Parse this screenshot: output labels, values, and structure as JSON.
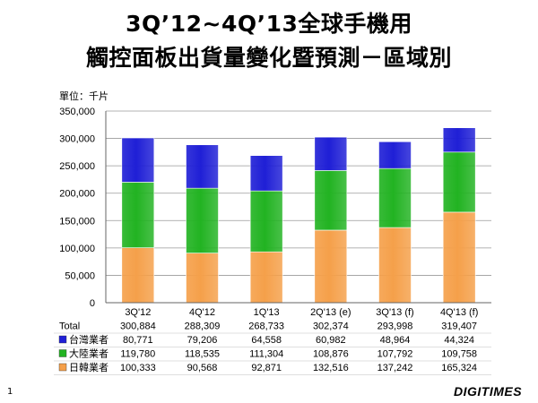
{
  "title_line1": "3Q’12~4Q’13全球手機用",
  "title_line2": "觸控面板出貨量變化暨預測－區域別",
  "unit_label": "單位：千片",
  "page_number": "1",
  "logo_text": "DIGITIMES",
  "colors": {
    "taiwan": "#1f1fd6",
    "china": "#22b322",
    "japan_korea": "#f5a04a"
  },
  "chart_data": {
    "type": "bar",
    "stacked": true,
    "title": "3Q’12~4Q’13全球手機用 觸控面板出貨量變化暨預測－區域別",
    "ylabel": "單位：千片",
    "ylim": [
      0,
      350000
    ],
    "yticks": [
      "0",
      "50,000",
      "100,000",
      "150,000",
      "200,000",
      "250,000",
      "300,000",
      "350,000"
    ],
    "grid": true,
    "categories": [
      "3Q'12",
      "4Q'12",
      "1Q'13",
      "2Q'13 (e)",
      "3Q'13 (f)",
      "4Q'13 (f)"
    ],
    "total_label": "Total",
    "totals": [
      "300,884",
      "288,309",
      "268,733",
      "302,374",
      "293,998",
      "319,407"
    ],
    "series": [
      {
        "name": "日韓業者",
        "color": "#f5a04a",
        "values": [
          100333,
          90568,
          92871,
          132516,
          137242,
          165324
        ],
        "labels": [
          "100,333",
          "90,568",
          "92,871",
          "132,516",
          "137,242",
          "165,324"
        ]
      },
      {
        "name": "大陸業者",
        "color": "#22b322",
        "values": [
          119780,
          118535,
          111304,
          108876,
          107792,
          109758
        ],
        "labels": [
          "119,780",
          "118,535",
          "111,304",
          "108,876",
          "107,792",
          "109,758"
        ]
      },
      {
        "name": "台灣業者",
        "color": "#1f1fd6",
        "values": [
          80771,
          79206,
          64558,
          60982,
          48964,
          44324
        ],
        "labels": [
          "80,771",
          "79,206",
          "64,558",
          "60,982",
          "48,964",
          "44,324"
        ]
      }
    ],
    "table_order": [
      "台灣業者",
      "大陸業者",
      "日韓業者"
    ]
  }
}
